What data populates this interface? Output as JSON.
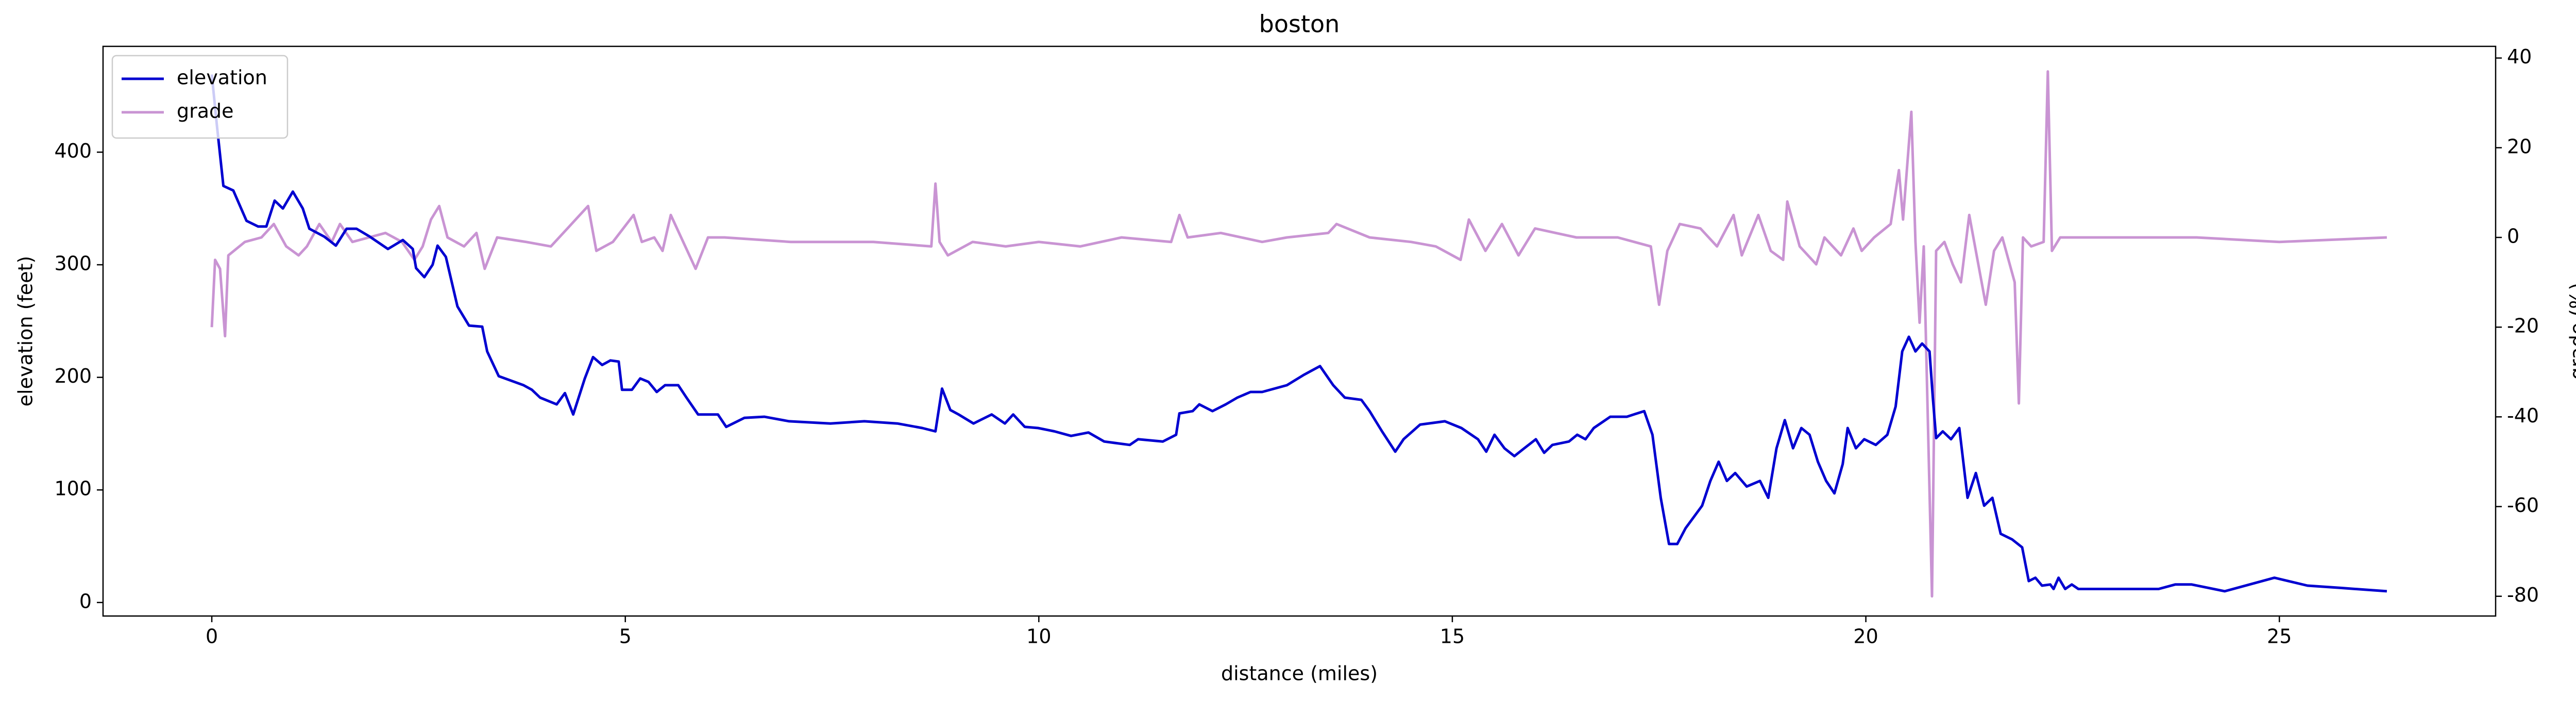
{
  "chart_data": {
    "type": "line",
    "title": "boston",
    "x_label": "distance (miles)",
    "y_label": "elevation (feet)",
    "y2_label": "grade (%)",
    "legend": "upper left",
    "xlim": [
      -1.315,
      27.615
    ],
    "xticks": [
      0,
      5,
      10,
      15,
      20,
      25
    ],
    "ylim": [
      -12,
      494
    ],
    "yticks": [
      0,
      100,
      200,
      300,
      400
    ],
    "y2lim": [
      -84.4,
      42.6
    ],
    "y2ticks": [
      -80,
      -60,
      -40,
      -20,
      0,
      20,
      40
    ],
    "series": [
      {
        "name": "elevation",
        "color": "#0000d0",
        "axis": "y",
        "x": [
          0,
          0.06,
          0.14,
          0.26,
          0.42,
          0.56,
          0.66,
          0.76,
          0.86,
          0.98,
          1.1,
          1.18,
          1.36,
          1.5,
          1.63,
          1.75,
          1.91,
          2.13,
          2.31,
          2.43,
          2.47,
          2.57,
          2.67,
          2.73,
          2.83,
          2.97,
          3.11,
          3.27,
          3.33,
          3.47,
          3.77,
          3.87,
          3.97,
          4.17,
          4.27,
          4.37,
          4.51,
          4.61,
          4.72,
          4.82,
          4.92,
          4.96,
          5.08,
          5.18,
          5.28,
          5.38,
          5.48,
          5.64,
          5.74,
          5.88,
          6.12,
          6.22,
          6.44,
          6.68,
          6.98,
          7.48,
          7.89,
          8.29,
          8.59,
          8.75,
          8.83,
          8.93,
          9.03,
          9.21,
          9.43,
          9.59,
          9.69,
          9.83,
          9.99,
          10.19,
          10.39,
          10.6,
          10.79,
          11.1,
          11.2,
          11.5,
          11.66,
          11.7,
          11.86,
          11.94,
          12.1,
          12.26,
          12.4,
          12.56,
          12.7,
          13,
          13.2,
          13.4,
          13.56,
          13.7,
          13.9,
          14,
          14.15,
          14.31,
          14.41,
          14.61,
          14.91,
          15.11,
          15.31,
          15.41,
          15.51,
          15.63,
          15.75,
          15.87,
          16.01,
          16.11,
          16.21,
          16.41,
          16.51,
          16.61,
          16.71,
          16.91,
          17.11,
          17.32,
          17.42,
          17.52,
          17.62,
          17.72,
          17.82,
          18.02,
          18.12,
          18.22,
          18.32,
          18.42,
          18.56,
          18.72,
          18.82,
          18.92,
          19.02,
          19.12,
          19.22,
          19.32,
          19.42,
          19.52,
          19.62,
          19.72,
          19.78,
          19.88,
          19.98,
          20.12,
          20.26,
          20.36,
          20.44,
          20.52,
          20.6,
          20.68,
          20.77,
          20.81,
          20.85,
          20.93,
          21.03,
          21.13,
          21.23,
          21.33,
          21.43,
          21.53,
          21.63,
          21.77,
          21.89,
          21.97,
          22.05,
          22.13,
          22.23,
          22.27,
          22.33,
          22.41,
          22.49,
          22.57,
          23.54,
          23.74,
          23.94,
          24.34,
          24.94,
          25.34,
          25.74,
          26.3
        ],
        "values": [
          469,
          425,
          370,
          366,
          339,
          334,
          334,
          357,
          350,
          365,
          350,
          332,
          325,
          317,
          332,
          332,
          325,
          314,
          322,
          314,
          297,
          289,
          300,
          317,
          307,
          263,
          246,
          245,
          223,
          201,
          193,
          189,
          182,
          176,
          186,
          167,
          199,
          218,
          211,
          215,
          214,
          189,
          189,
          199,
          196,
          187,
          193,
          193,
          182,
          167,
          167,
          156,
          164,
          165,
          161,
          159,
          161,
          159,
          155,
          152,
          190,
          171,
          167,
          159,
          167,
          159,
          167,
          156,
          155,
          152,
          148,
          151,
          143,
          140,
          145,
          143,
          149,
          168,
          170,
          176,
          170,
          176,
          182,
          187,
          187,
          193,
          202,
          210,
          193,
          182,
          180,
          170,
          152,
          134,
          145,
          158,
          161,
          155,
          145,
          134,
          149,
          137,
          130,
          137,
          145,
          133,
          140,
          143,
          149,
          145,
          155,
          165,
          165,
          170,
          149,
          93,
          52,
          52,
          66,
          86,
          108,
          125,
          108,
          115,
          103,
          108,
          93,
          137,
          162,
          137,
          155,
          149,
          125,
          108,
          97,
          123,
          155,
          137,
          145,
          140,
          149,
          174,
          223,
          236,
          223,
          230,
          223,
          182,
          146,
          152,
          145,
          155,
          93,
          115,
          86,
          93,
          61,
          56,
          49,
          19,
          22,
          15,
          16,
          12,
          22,
          12,
          16,
          12,
          12,
          16,
          16,
          10,
          22,
          15,
          13,
          10
        ]
      },
      {
        "name": "grade",
        "color": "#c994d3",
        "axis": "y2",
        "x": [
          0,
          0.04,
          0.1,
          0.16,
          0.2,
          0.4,
          0.6,
          0.75,
          0.9,
          1.05,
          1.15,
          1.3,
          1.45,
          1.55,
          1.7,
          1.9,
          2.1,
          2.3,
          2.45,
          2.55,
          2.65,
          2.75,
          2.85,
          3.05,
          3.2,
          3.3,
          3.45,
          3.8,
          4.1,
          4.3,
          4.45,
          4.55,
          4.65,
          4.85,
          5.1,
          5.2,
          5.35,
          5.45,
          5.55,
          5.7,
          5.85,
          6,
          6.2,
          7,
          8,
          8.7,
          8.75,
          8.8,
          8.9,
          9.2,
          9.6,
          10,
          10.5,
          11,
          11.6,
          11.7,
          11.8,
          12.2,
          12.7,
          13,
          13.5,
          13.6,
          14,
          14.5,
          14.8,
          15.1,
          15.2,
          15.4,
          15.6,
          15.8,
          16,
          16.5,
          17,
          17.4,
          17.5,
          17.6,
          17.75,
          18,
          18.2,
          18.4,
          18.5,
          18.7,
          18.85,
          19,
          19.05,
          19.2,
          19.4,
          19.5,
          19.7,
          19.85,
          19.95,
          20.1,
          20.3,
          20.4,
          20.45,
          20.55,
          20.6,
          20.65,
          20.7,
          20.8,
          20.85,
          20.95,
          21.05,
          21.15,
          21.25,
          21.35,
          21.45,
          21.55,
          21.65,
          21.8,
          21.85,
          21.9,
          22,
          22.15,
          22.2,
          22.25,
          22.35,
          23,
          24,
          25,
          26.3
        ],
        "values": [
          -20,
          -5,
          -7,
          -22,
          -4,
          -1,
          0,
          3,
          -2,
          -4,
          -2,
          3,
          -1,
          3,
          -1,
          0,
          1,
          -1,
          -5,
          -2,
          4,
          7,
          0,
          -2,
          1,
          -7,
          0,
          -1,
          -2,
          2,
          5,
          7,
          -3,
          -1,
          5,
          -1,
          0,
          -3,
          5,
          -1,
          -7,
          0,
          0,
          -1,
          -1,
          -2,
          12,
          -1,
          -4,
          -1,
          -2,
          -1,
          -2,
          0,
          -1,
          5,
          0,
          1,
          -1,
          0,
          1,
          3,
          0,
          -1,
          -2,
          -5,
          4,
          -3,
          3,
          -4,
          2,
          0,
          0,
          -2,
          -15,
          -3,
          3,
          2,
          -2,
          5,
          -4,
          5,
          -3,
          -5,
          8,
          -2,
          -6,
          0,
          -4,
          2,
          -3,
          0,
          3,
          15,
          4,
          28,
          -1,
          -19,
          -2,
          -80,
          -3,
          -1,
          -6,
          -10,
          5,
          -5,
          -15,
          -3,
          0,
          -10,
          -37,
          0,
          -2,
          -1,
          37,
          -3,
          0,
          0,
          0,
          -1,
          0
        ]
      }
    ]
  }
}
